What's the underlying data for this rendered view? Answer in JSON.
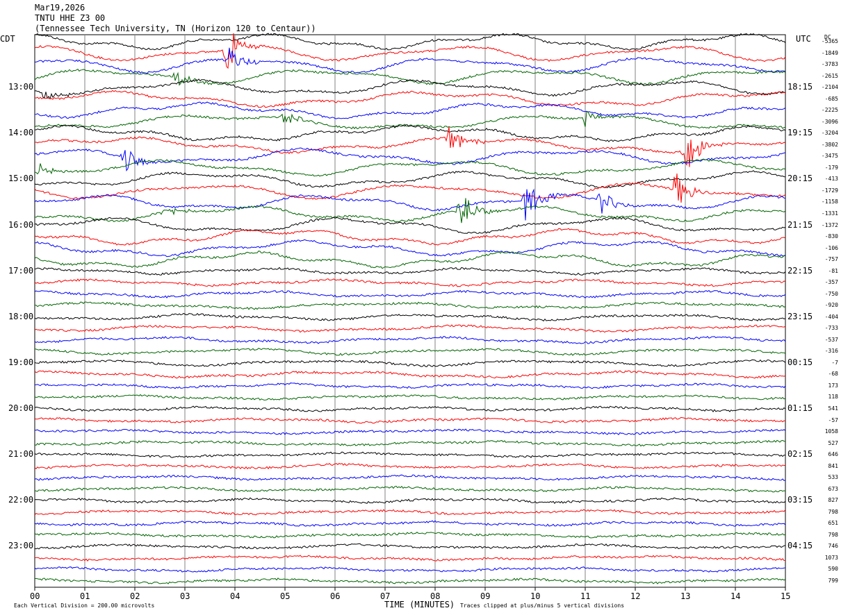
{
  "header": {
    "date": "Mar19,2026",
    "station": "TNTU HHE Z3 00",
    "location": "(Tennessee Tech University, TN (Horizon 120 to Centaur))"
  },
  "left_axis_label": "CDT",
  "right_axis_label": "UTC",
  "dc_label": "DC",
  "footer": {
    "scale_note": "Each Vertical Division =  200.00 microvolts",
    "xlabel": "TIME (MINUTES)",
    "clip_note": "Traces clipped at plus/minus 5 vertical divisions"
  },
  "colors": {
    "cycle": [
      "#000000",
      "#ff0000",
      "#0000ff",
      "#006400"
    ],
    "grid": "#808080"
  },
  "chart_data": {
    "type": "line",
    "title": "TNTU HHE Z3 00",
    "xlabel": "TIME (MINUTES)",
    "xlim": [
      0,
      15
    ],
    "x_ticks": [
      "00",
      "01",
      "02",
      "03",
      "04",
      "05",
      "06",
      "07",
      "08",
      "09",
      "10",
      "11",
      "12",
      "13",
      "14",
      "15"
    ],
    "cdt_hour_labels": [
      "13:00",
      "14:00",
      "15:00",
      "16:00",
      "17:00",
      "18:00",
      "19:00",
      "20:00",
      "21:00",
      "22:00",
      "23:00"
    ],
    "utc_hour_labels": [
      "18:15",
      "19:15",
      "20:15",
      "21:15",
      "22:15",
      "23:15",
      "00:15",
      "01:15",
      "02:15",
      "03:15",
      "04:15"
    ],
    "trace_count": 48,
    "dc_offsets": [
      "-5365",
      "-1849",
      "-3783",
      "-2615",
      "-2104",
      "-685",
      "-2225",
      "-3096",
      "-3204",
      "-3802",
      "-3475",
      "-179",
      "-413",
      "-1729",
      "-1158",
      "-1331",
      "-1372",
      "-830",
      "-106",
      "-757",
      "-81",
      "-357",
      "-750",
      "-920",
      "-404",
      "-733",
      "-537",
      "-316",
      "-7",
      "-68",
      "173",
      "118",
      "541",
      "-57",
      "1058",
      "527",
      "646",
      "841",
      "533",
      "673",
      "827",
      "798",
      "651",
      "798",
      "746",
      "1073",
      "590",
      "799"
    ],
    "events": [
      {
        "trace": 1,
        "minute": 3.85,
        "amp": 5
      },
      {
        "trace": 2,
        "minute": 3.9,
        "amp": 3
      },
      {
        "trace": 3,
        "minute": 2.85,
        "amp": 2
      },
      {
        "trace": 4,
        "minute": 0.2,
        "amp": 1.5
      },
      {
        "trace": 7,
        "minute": 5.0,
        "amp": 1.8
      },
      {
        "trace": 7,
        "minute": 11.0,
        "amp": 1.8
      },
      {
        "trace": 10,
        "minute": 1.8,
        "amp": 3
      },
      {
        "trace": 9,
        "minute": 8.3,
        "amp": 4
      },
      {
        "trace": 9,
        "minute": 13.0,
        "amp": 5
      },
      {
        "trace": 11,
        "minute": 0.1,
        "amp": 1.5
      },
      {
        "trace": 14,
        "minute": 9.8,
        "amp": 5
      },
      {
        "trace": 13,
        "minute": 12.8,
        "amp": 4
      },
      {
        "trace": 15,
        "minute": 8.5,
        "amp": 5
      },
      {
        "trace": 15,
        "minute": 2.6,
        "amp": 1.5
      },
      {
        "trace": 14,
        "minute": 11.3,
        "amp": 3
      }
    ]
  }
}
